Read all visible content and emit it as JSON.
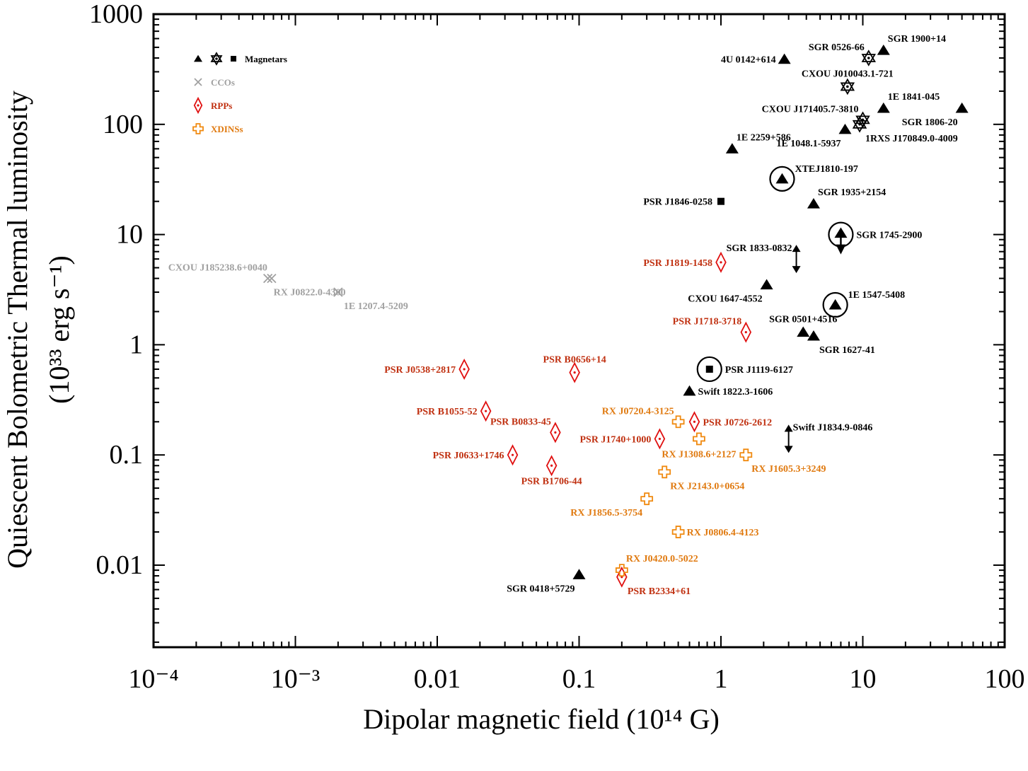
{
  "chart_data": {
    "type": "scatter",
    "xscale": "log",
    "yscale": "log",
    "xlim": [
      0.0001,
      100
    ],
    "ylim": [
      0.0018,
      1000
    ],
    "xlabel": "Dipolar magnetic field (10¹⁴ G)",
    "ylabel_line1": "Quiescent Bolometric Thermal luminosity",
    "ylabel_line2": "(10³³ erg s⁻¹)",
    "x_ticks": [
      {
        "v": 0.0001,
        "label": "10⁻⁴"
      },
      {
        "v": 0.001,
        "label": "10⁻³"
      },
      {
        "v": 0.01,
        "label": "0.01"
      },
      {
        "v": 0.1,
        "label": "0.1"
      },
      {
        "v": 1,
        "label": "1"
      },
      {
        "v": 10,
        "label": "10"
      },
      {
        "v": 100,
        "label": "100"
      }
    ],
    "y_ticks": [
      {
        "v": 0.01,
        "label": "0.01"
      },
      {
        "v": 0.1,
        "label": "0.1"
      },
      {
        "v": 1,
        "label": "1"
      },
      {
        "v": 10,
        "label": "10"
      },
      {
        "v": 100,
        "label": "100"
      },
      {
        "v": 1000,
        "label": "1000"
      }
    ],
    "colors": {
      "magnetar": "#000000",
      "cco": "#a0a0a0",
      "rpp": "#e01010",
      "rpp_label": "#c03010",
      "xdins": "#f08a10",
      "xdins_label": "#e07a10"
    },
    "legend": [
      {
        "group": "magnetar",
        "label": "Magnetars"
      },
      {
        "group": "cco",
        "label": "CCOs"
      },
      {
        "group": "rpp",
        "label": "RPPs"
      },
      {
        "group": "xdins",
        "label": "XDINSs"
      }
    ],
    "points": [
      {
        "name": "4U 0142+614",
        "group": "magnetar",
        "marker": "triangle",
        "x": 2.8,
        "y": 390,
        "label_pos": "left"
      },
      {
        "name": "SGR 0526-66",
        "group": "magnetar",
        "marker": "star",
        "x": 11,
        "y": 400,
        "label_pos": "upleft"
      },
      {
        "name": "SGR 1900+14",
        "group": "magnetar",
        "marker": "triangle",
        "x": 14,
        "y": 470,
        "label_pos": "upright"
      },
      {
        "name": "CXOU J010043.1-721",
        "group": "magnetar",
        "marker": "star",
        "x": 7.8,
        "y": 220,
        "label_pos": "upcenter"
      },
      {
        "name": "CXOU J171405.7-3810",
        "group": "magnetar",
        "marker": "star",
        "x": 10,
        "y": 110,
        "label_pos": "upleft"
      },
      {
        "name": "1E 1841-045",
        "group": "magnetar",
        "marker": "triangle",
        "x": 14,
        "y": 140,
        "label_pos": "upright"
      },
      {
        "name": "SGR 1806-20",
        "group": "magnetar",
        "marker": "triangle",
        "x": 50,
        "y": 140,
        "label_pos": "downleft"
      },
      {
        "name": "1E 1048.1-5937",
        "group": "magnetar",
        "marker": "triangle",
        "x": 7.5,
        "y": 90,
        "label_pos": "downleft"
      },
      {
        "name": "1RXS J170849.0-4009",
        "group": "magnetar",
        "marker": "star",
        "x": 9.5,
        "y": 100,
        "label_pos": "downright"
      },
      {
        "name": "1E 2259+586",
        "group": "magnetar",
        "marker": "triangle",
        "x": 1.2,
        "y": 60,
        "label_pos": "upright"
      },
      {
        "name": "XTEJ1810-197",
        "group": "magnetar",
        "marker": "triangle",
        "x": 2.7,
        "y": 32,
        "circle": true,
        "label_pos": "upright"
      },
      {
        "name": "PSR J1846-0258",
        "group": "magnetar",
        "marker": "square",
        "x": 1.0,
        "y": 20,
        "label_pos": "left"
      },
      {
        "name": "SGR 1935+2154",
        "group": "magnetar",
        "marker": "triangle",
        "x": 4.5,
        "y": 19,
        "label_pos": "upright"
      },
      {
        "name": "SGR 1833-0832",
        "group": "magnetar",
        "marker": "arrow",
        "x": 3.4,
        "y": 6.0,
        "label_pos": "upleft"
      },
      {
        "name": "SGR 1745-2900",
        "group": "magnetar",
        "marker": "triangle_arrow",
        "x": 7,
        "y": 10,
        "circle": true,
        "label_pos": "right"
      },
      {
        "name": "CXOU 1647-4552",
        "group": "magnetar",
        "marker": "triangle",
        "x": 2.1,
        "y": 3.5,
        "label_pos": "downleft"
      },
      {
        "name": "1E 1547-5408",
        "group": "magnetar",
        "marker": "triangle",
        "x": 6.4,
        "y": 2.3,
        "circle": true,
        "label_pos": "upright"
      },
      {
        "name": "SGR 0501+4516",
        "group": "magnetar",
        "marker": "triangle",
        "x": 3.8,
        "y": 1.3,
        "label_pos": "upcenter"
      },
      {
        "name": "SGR 1627-41",
        "group": "magnetar",
        "marker": "triangle",
        "x": 4.5,
        "y": 1.2,
        "label_pos": "downright"
      },
      {
        "name": "PSR J1119-6127",
        "group": "magnetar",
        "marker": "square",
        "x": 0.83,
        "y": 0.6,
        "circle": true,
        "label_pos": "right"
      },
      {
        "name": "Swift 1822.3-1606",
        "group": "magnetar",
        "marker": "triangle",
        "x": 0.6,
        "y": 0.38,
        "label_pos": "right"
      },
      {
        "name": "Swift J1834.9-0846",
        "group": "magnetar",
        "marker": "arrow",
        "x": 3.0,
        "y": 0.14,
        "label_pos": "upright"
      },
      {
        "name": "SGR 0418+5729",
        "group": "magnetar",
        "marker": "triangle",
        "x": 0.1,
        "y": 0.0082,
        "label_pos": "downleft"
      },
      {
        "name": "CXOU J185238.6+0040",
        "group": "cco",
        "marker": "cross",
        "x": 0.00068,
        "y": 4.0,
        "label_pos": "upleft"
      },
      {
        "name": "RX J0822.0-4300",
        "group": "cco",
        "marker": "cross",
        "x": 0.00064,
        "y": 4.0,
        "label_pos": "downright"
      },
      {
        "name": "1E 1207.4-5209",
        "group": "cco",
        "marker": "cross",
        "x": 0.002,
        "y": 3.0,
        "label_pos": "downright"
      },
      {
        "name": "PSR J1819-1458",
        "group": "rpp",
        "marker": "diamond",
        "x": 1.0,
        "y": 5.6,
        "label_pos": "left"
      },
      {
        "name": "PSR J1718-3718",
        "group": "rpp",
        "marker": "diamond",
        "x": 1.5,
        "y": 1.3,
        "label_pos": "upleft"
      },
      {
        "name": "PSR J0538+2817",
        "group": "rpp",
        "marker": "diamond",
        "x": 0.0155,
        "y": 0.6,
        "label_pos": "left"
      },
      {
        "name": "PSR B0656+14",
        "group": "rpp",
        "marker": "diamond",
        "x": 0.093,
        "y": 0.56,
        "label_pos": "upcenter"
      },
      {
        "name": "PSR B1055-52",
        "group": "rpp",
        "marker": "diamond",
        "x": 0.022,
        "y": 0.25,
        "label_pos": "left"
      },
      {
        "name": "PSR B0833-45",
        "group": "rpp",
        "marker": "diamond",
        "x": 0.068,
        "y": 0.16,
        "label_pos": "upleft"
      },
      {
        "name": "PSR J1740+1000",
        "group": "rpp",
        "marker": "diamond",
        "x": 0.37,
        "y": 0.14,
        "label_pos": "left"
      },
      {
        "name": "PSR J0726-2612",
        "group": "rpp",
        "marker": "diamond",
        "x": 0.65,
        "y": 0.2,
        "label_pos": "right"
      },
      {
        "name": "PSR J0633+1746",
        "group": "rpp",
        "marker": "diamond",
        "x": 0.034,
        "y": 0.1,
        "label_pos": "left"
      },
      {
        "name": "PSR B1706-44",
        "group": "rpp",
        "marker": "diamond",
        "x": 0.064,
        "y": 0.08,
        "label_pos": "downcenter"
      },
      {
        "name": "PSR B2334+61",
        "group": "rpp",
        "marker": "diamond",
        "x": 0.2,
        "y": 0.0078,
        "label_pos": "downright"
      },
      {
        "name": "RX J0720.4-3125",
        "group": "xdins",
        "marker": "plus",
        "x": 0.5,
        "y": 0.2,
        "label_pos": "upleft"
      },
      {
        "name": "RX J1308.6+2127",
        "group": "xdins",
        "marker": "plus",
        "x": 0.7,
        "y": 0.14,
        "label_pos": "downcenter"
      },
      {
        "name": "RX J1605.3+3249",
        "group": "xdins",
        "marker": "plus",
        "x": 1.5,
        "y": 0.1,
        "label_pos": "downright"
      },
      {
        "name": "RX J2143.0+0654",
        "group": "xdins",
        "marker": "plus",
        "x": 0.4,
        "y": 0.07,
        "label_pos": "downright"
      },
      {
        "name": "RX J1856.5-3754",
        "group": "xdins",
        "marker": "plus",
        "x": 0.3,
        "y": 0.04,
        "label_pos": "downleft"
      },
      {
        "name": "RX J0806.4-4123",
        "group": "xdins",
        "marker": "plus",
        "x": 0.5,
        "y": 0.02,
        "label_pos": "right"
      },
      {
        "name": "RX J0420.0-5022",
        "group": "xdins",
        "marker": "plus",
        "x": 0.2,
        "y": 0.009,
        "label_pos": "upright"
      }
    ]
  }
}
